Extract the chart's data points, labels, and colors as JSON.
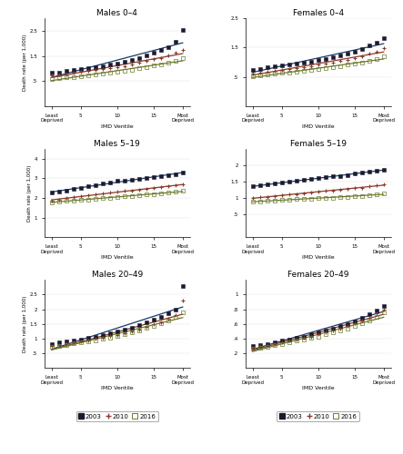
{
  "titles": [
    [
      "Males 0–4",
      "Females 0–4"
    ],
    [
      "Males 5–19",
      "Females 5–19"
    ],
    [
      "Males 20–49",
      "Females 20–49"
    ]
  ],
  "ylabel": "Death rate (per 1,000)",
  "xlabel": "IMD Ventile",
  "x_ticks": [
    1,
    5,
    10,
    15,
    19
  ],
  "x_tick_labels": [
    "Least\nDeprived",
    "5",
    "10",
    "15",
    "Most\nDeprived"
  ],
  "years": [
    "2003",
    "2010",
    "2016"
  ],
  "ventiles": [
    1,
    2,
    3,
    4,
    5,
    6,
    7,
    8,
    9,
    10,
    11,
    12,
    13,
    14,
    15,
    16,
    17,
    18,
    19
  ],
  "data": {
    "males_04": {
      "2003": [
        0.82,
        0.85,
        0.9,
        0.93,
        0.97,
        1.02,
        1.06,
        1.1,
        1.15,
        1.2,
        1.27,
        1.33,
        1.42,
        1.52,
        1.62,
        1.73,
        1.85,
        2.08,
        2.52
      ],
      "2010": [
        0.72,
        0.75,
        0.78,
        0.82,
        0.86,
        0.9,
        0.93,
        0.97,
        1.01,
        1.06,
        1.1,
        1.16,
        1.22,
        1.29,
        1.36,
        1.43,
        1.52,
        1.62,
        1.72
      ],
      "2016": [
        0.58,
        0.61,
        0.64,
        0.67,
        0.7,
        0.73,
        0.76,
        0.79,
        0.83,
        0.87,
        0.91,
        0.96,
        1.0,
        1.05,
        1.11,
        1.17,
        1.24,
        1.32,
        1.42
      ],
      "ylim": [
        -0.5,
        3.0
      ],
      "yticks": [
        0.5,
        1.5,
        2.5
      ],
      "ytick_labels": [
        ".5",
        "1.5",
        "2.5"
      ]
    },
    "females_04": {
      "2003": [
        0.75,
        0.78,
        0.82,
        0.85,
        0.88,
        0.92,
        0.95,
        0.99,
        1.03,
        1.07,
        1.12,
        1.17,
        1.23,
        1.3,
        1.37,
        1.46,
        1.56,
        1.67,
        1.82
      ],
      "2010": [
        0.62,
        0.65,
        0.68,
        0.71,
        0.74,
        0.77,
        0.8,
        0.83,
        0.87,
        0.91,
        0.95,
        0.99,
        1.04,
        1.09,
        1.15,
        1.21,
        1.28,
        1.37,
        1.47
      ],
      "2016": [
        0.52,
        0.55,
        0.57,
        0.6,
        0.63,
        0.65,
        0.68,
        0.7,
        0.73,
        0.76,
        0.79,
        0.83,
        0.87,
        0.91,
        0.95,
        1.0,
        1.05,
        1.12,
        1.2
      ],
      "ylim": [
        -0.5,
        2.5
      ],
      "yticks": [
        0.5,
        1.5,
        2.5
      ],
      "ytick_labels": [
        ".5",
        "1.5",
        "2.5"
      ]
    },
    "males_519": {
      "2003": [
        2.28,
        2.32,
        2.38,
        2.45,
        2.52,
        2.6,
        2.66,
        2.73,
        2.8,
        2.86,
        2.9,
        2.94,
        2.98,
        3.02,
        3.06,
        3.1,
        3.16,
        3.22,
        3.28
      ],
      "2010": [
        1.88,
        1.93,
        1.98,
        2.03,
        2.08,
        2.13,
        2.18,
        2.23,
        2.27,
        2.31,
        2.35,
        2.39,
        2.43,
        2.47,
        2.51,
        2.55,
        2.59,
        2.64,
        2.68
      ],
      "2016": [
        1.78,
        1.81,
        1.84,
        1.87,
        1.9,
        1.93,
        1.96,
        1.99,
        2.02,
        2.05,
        2.08,
        2.11,
        2.14,
        2.17,
        2.2,
        2.24,
        2.27,
        2.31,
        2.35
      ],
      "ylim": [
        0.0,
        4.5
      ],
      "yticks": [
        1.0,
        2.0,
        3.0,
        4.0
      ],
      "ytick_labels": [
        "1",
        "2",
        "3",
        "4"
      ]
    },
    "females_519": {
      "2003": [
        1.35,
        1.38,
        1.41,
        1.44,
        1.47,
        1.5,
        1.53,
        1.55,
        1.58,
        1.61,
        1.63,
        1.66,
        1.68,
        1.71,
        1.74,
        1.77,
        1.8,
        1.83,
        1.87
      ],
      "2010": [
        1.0,
        1.02,
        1.04,
        1.06,
        1.08,
        1.1,
        1.12,
        1.14,
        1.17,
        1.19,
        1.21,
        1.23,
        1.25,
        1.28,
        1.3,
        1.32,
        1.35,
        1.38,
        1.41
      ],
      "2016": [
        0.88,
        0.9,
        0.91,
        0.93,
        0.94,
        0.95,
        0.96,
        0.97,
        0.98,
        0.99,
        1.0,
        1.01,
        1.02,
        1.03,
        1.05,
        1.07,
        1.09,
        1.11,
        1.14
      ],
      "ylim": [
        -0.2,
        2.5
      ],
      "yticks": [
        0.5,
        1.0,
        1.5,
        2.0
      ],
      "ytick_labels": [
        ".5",
        "1",
        "1.5",
        "2"
      ]
    },
    "males_2049": {
      "2003": [
        0.82,
        0.86,
        0.9,
        0.94,
        0.98,
        1.02,
        1.07,
        1.12,
        1.17,
        1.24,
        1.3,
        1.37,
        1.45,
        1.54,
        1.64,
        1.74,
        1.86,
        2.0,
        2.8
      ],
      "2010": [
        0.76,
        0.79,
        0.83,
        0.87,
        0.91,
        0.95,
        0.99,
        1.03,
        1.08,
        1.13,
        1.19,
        1.25,
        1.32,
        1.4,
        1.48,
        1.57,
        1.68,
        1.8,
        2.3
      ],
      "2016": [
        0.72,
        0.75,
        0.79,
        0.83,
        0.87,
        0.91,
        0.95,
        0.99,
        1.04,
        1.09,
        1.15,
        1.21,
        1.28,
        1.36,
        1.44,
        1.53,
        1.63,
        1.74,
        1.9
      ],
      "ylim": [
        0.0,
        3.0
      ],
      "yticks": [
        0.5,
        1.0,
        1.5,
        2.0,
        2.5
      ],
      "ytick_labels": [
        ".5",
        "1",
        "1.5",
        "2",
        "2.5"
      ]
    },
    "females_2049": {
      "2003": [
        0.3,
        0.31,
        0.33,
        0.35,
        0.37,
        0.39,
        0.41,
        0.43,
        0.46,
        0.48,
        0.51,
        0.54,
        0.57,
        0.6,
        0.64,
        0.68,
        0.73,
        0.78,
        0.84
      ],
      "2010": [
        0.28,
        0.3,
        0.31,
        0.33,
        0.35,
        0.37,
        0.39,
        0.41,
        0.43,
        0.46,
        0.48,
        0.51,
        0.54,
        0.57,
        0.61,
        0.65,
        0.69,
        0.74,
        0.8
      ],
      "2016": [
        0.26,
        0.28,
        0.29,
        0.31,
        0.33,
        0.35,
        0.37,
        0.39,
        0.41,
        0.43,
        0.46,
        0.48,
        0.51,
        0.54,
        0.57,
        0.61,
        0.65,
        0.7,
        0.76
      ],
      "ylim": [
        0.0,
        1.2
      ],
      "yticks": [
        0.2,
        0.4,
        0.6,
        0.8,
        1.0
      ],
      "ytick_labels": [
        ".2",
        ".4",
        ".6",
        ".8",
        "1"
      ]
    }
  },
  "panel_keys": [
    [
      "males_04",
      "females_04"
    ],
    [
      "males_519",
      "females_519"
    ],
    [
      "males_2049",
      "females_2049"
    ]
  ],
  "line_colors": {
    "2003": "#1a3a6e",
    "2010": "#8b3a2a",
    "2016": "#6b7a2a"
  },
  "marker_facecolors": {
    "2003": "#1a1a2e",
    "2010": "#8b3a2a",
    "2016": "none"
  },
  "marker_edgecolors": {
    "2003": "#1a1a2e",
    "2010": "#8b3a2a",
    "2016": "#6b7a2a"
  }
}
